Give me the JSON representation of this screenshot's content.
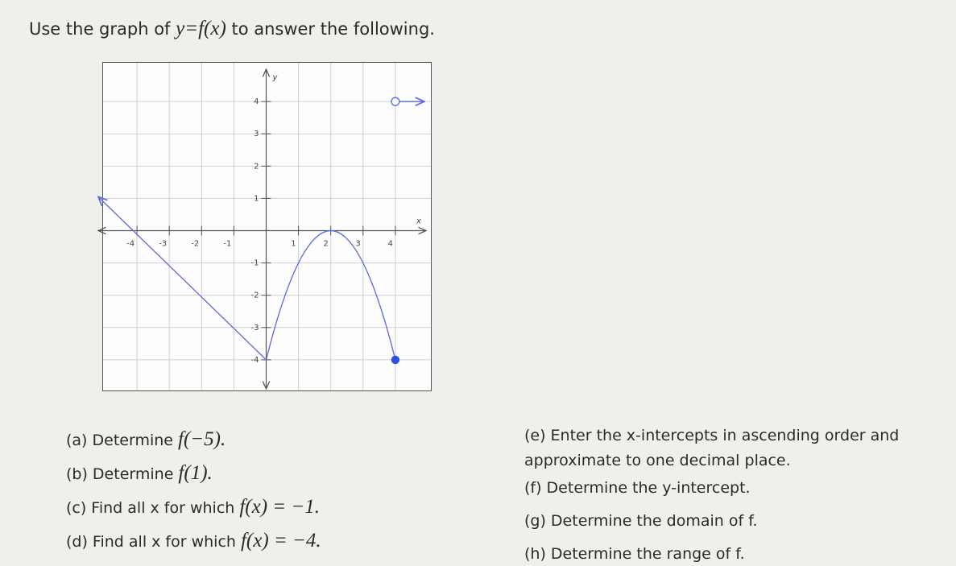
{
  "header": {
    "title": [
      "Use the graph of ",
      "y=f(x)",
      " to answer the following."
    ]
  },
  "graph": {
    "xlim": [
      -5.05,
      5.1
    ],
    "ylim": [
      -4.95,
      5.2
    ],
    "xticks": [
      -4,
      -3,
      -2,
      -1,
      1,
      2,
      3,
      4
    ],
    "yticks": [
      -4,
      -3,
      -2,
      -1,
      1,
      2,
      3,
      4
    ],
    "xlabel": "x",
    "ylabel": "y",
    "grid": true,
    "color": "#6170dc",
    "segments": [
      {
        "x": [
          -5.2,
          0
        ],
        "y": [
          1.05,
          -4
        ],
        "curve": "line",
        "arrow_start": true
      },
      {
        "x": [
          0,
          2,
          4
        ],
        "y": [
          -4,
          0,
          -4
        ],
        "curve": "parabola"
      },
      {
        "x": [
          4,
          4.9
        ],
        "y": [
          4,
          4
        ],
        "curve": "line",
        "arrow_end": true
      }
    ],
    "points": [
      {
        "x": 4,
        "y": 4,
        "open": true
      },
      {
        "x": 4,
        "y": -4,
        "open": false
      }
    ]
  },
  "left": [
    {
      "text": "(a) Determine ",
      "math": "f(−5)."
    },
    {
      "text": "(b) Determine ",
      "math": "f(1)."
    },
    {
      "text": "(c) Find all x for which ",
      "math": "f(x) = −1."
    },
    {
      "text": "(d) Find all x for which ",
      "math": "f(x) = −4."
    }
  ],
  "right": [
    {
      "text": "(e) Enter the x-intercepts in ascending order and"
    },
    {
      "text": "approximate to one decimal place."
    },
    {
      "text": "(f) Determine the y-intercept."
    },
    {
      "text": "(g) Determine the domain of f."
    },
    {
      "text": "(h) Determine the range of f."
    }
  ]
}
